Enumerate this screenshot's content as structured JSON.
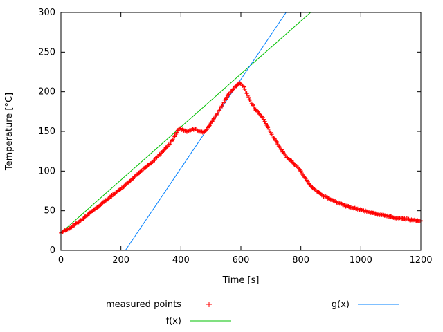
{
  "chart_data": {
    "type": "scatter",
    "title": "",
    "xlabel": "Time [s]",
    "ylabel": "Temperature [°C]",
    "xlim": [
      0,
      1200
    ],
    "ylim": [
      0,
      300
    ],
    "xticks": [
      0,
      200,
      400,
      600,
      800,
      1000,
      1200
    ],
    "yticks": [
      0,
      50,
      100,
      150,
      200,
      250,
      300
    ],
    "grid": false,
    "legend_position": "below-plot",
    "series": [
      {
        "name": "measured points",
        "kind": "points",
        "marker": "plus",
        "color": "#ff0000",
        "points": [
          [
            0,
            22
          ],
          [
            10,
            24
          ],
          [
            20,
            26
          ],
          [
            30,
            28.5
          ],
          [
            40,
            31
          ],
          [
            50,
            33.5
          ],
          [
            60,
            36
          ],
          [
            70,
            39
          ],
          [
            80,
            42
          ],
          [
            90,
            45
          ],
          [
            100,
            48
          ],
          [
            110,
            51
          ],
          [
            120,
            54
          ],
          [
            130,
            57
          ],
          [
            140,
            60
          ],
          [
            150,
            63
          ],
          [
            160,
            66
          ],
          [
            170,
            69
          ],
          [
            180,
            72
          ],
          [
            190,
            75
          ],
          [
            200,
            78
          ],
          [
            210,
            81
          ],
          [
            220,
            84
          ],
          [
            230,
            87.5
          ],
          [
            240,
            91
          ],
          [
            250,
            94
          ],
          [
            260,
            97.5
          ],
          [
            270,
            101
          ],
          [
            280,
            104
          ],
          [
            290,
            107
          ],
          [
            300,
            110
          ],
          [
            310,
            113.5
          ],
          [
            320,
            117
          ],
          [
            330,
            121
          ],
          [
            340,
            125
          ],
          [
            350,
            129
          ],
          [
            360,
            133
          ],
          [
            370,
            138
          ],
          [
            380,
            144
          ],
          [
            390,
            151
          ],
          [
            395,
            154
          ],
          [
            400,
            153
          ],
          [
            410,
            151
          ],
          [
            420,
            150
          ],
          [
            430,
            151.5
          ],
          [
            440,
            153
          ],
          [
            450,
            152
          ],
          [
            460,
            150
          ],
          [
            470,
            149
          ],
          [
            480,
            150
          ],
          [
            490,
            155
          ],
          [
            500,
            160
          ],
          [
            510,
            166
          ],
          [
            520,
            172
          ],
          [
            530,
            178
          ],
          [
            540,
            185
          ],
          [
            550,
            191
          ],
          [
            560,
            197
          ],
          [
            570,
            202
          ],
          [
            580,
            206
          ],
          [
            590,
            209
          ],
          [
            595,
            211
          ],
          [
            600,
            210
          ],
          [
            610,
            206
          ],
          [
            620,
            197
          ],
          [
            630,
            189
          ],
          [
            640,
            182
          ],
          [
            650,
            177
          ],
          [
            655,
            175
          ],
          [
            660,
            173
          ],
          [
            670,
            169
          ],
          [
            680,
            162
          ],
          [
            690,
            155
          ],
          [
            700,
            148
          ],
          [
            710,
            142
          ],
          [
            720,
            136
          ],
          [
            730,
            130
          ],
          [
            740,
            124
          ],
          [
            750,
            119
          ],
          [
            760,
            115
          ],
          [
            770,
            112
          ],
          [
            780,
            108
          ],
          [
            790,
            105
          ],
          [
            800,
            100
          ],
          [
            805,
            96
          ],
          [
            810,
            93
          ],
          [
            820,
            88
          ],
          [
            830,
            83
          ],
          [
            840,
            79
          ],
          [
            850,
            76
          ],
          [
            860,
            73
          ],
          [
            870,
            70
          ],
          [
            880,
            68
          ],
          [
            890,
            66
          ],
          [
            900,
            64
          ],
          [
            910,
            62
          ],
          [
            920,
            61
          ],
          [
            930,
            59
          ],
          [
            940,
            58
          ],
          [
            950,
            56
          ],
          [
            960,
            55
          ],
          [
            970,
            54
          ],
          [
            980,
            53
          ],
          [
            990,
            52
          ],
          [
            1000,
            51
          ],
          [
            1010,
            50
          ],
          [
            1020,
            49
          ],
          [
            1030,
            48
          ],
          [
            1040,
            47
          ],
          [
            1050,
            46
          ],
          [
            1060,
            45
          ],
          [
            1070,
            44.5
          ],
          [
            1080,
            44
          ],
          [
            1090,
            43
          ],
          [
            1100,
            42
          ],
          [
            1110,
            41.5
          ],
          [
            1120,
            41
          ],
          [
            1130,
            40.5
          ],
          [
            1140,
            40
          ],
          [
            1150,
            39.5
          ],
          [
            1160,
            39
          ],
          [
            1170,
            38.5
          ],
          [
            1180,
            38
          ],
          [
            1190,
            37.5
          ],
          [
            1200,
            37
          ]
        ]
      },
      {
        "name": "f(x)",
        "kind": "line",
        "color": "#00c000",
        "slope": 0.334,
        "intercept": 22
      },
      {
        "name": "g(x)",
        "kind": "line",
        "color": "#0080ff",
        "slope": 0.56,
        "intercept": -120.4
      }
    ]
  }
}
